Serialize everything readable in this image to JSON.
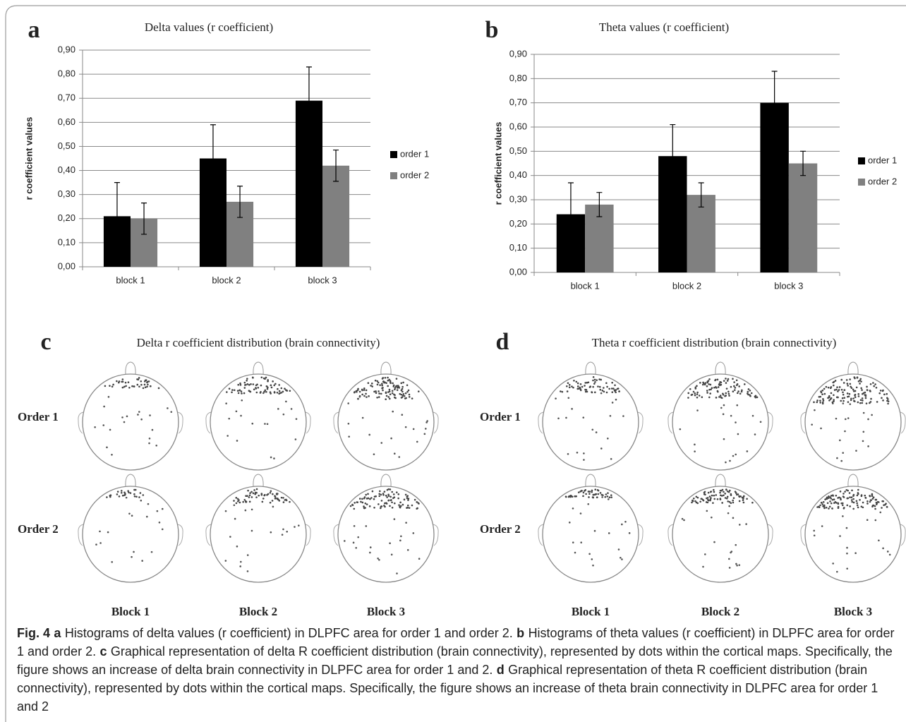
{
  "chart_data": [
    {
      "type": "bar",
      "panel": "a",
      "title": "Delta values (r coefficient)",
      "y_label": "r coefficient values",
      "categories": [
        "block 1",
        "block 2",
        "block 3"
      ],
      "series": [
        {
          "name": "order 1",
          "color": "#000000",
          "values": [
            0.21,
            0.45,
            0.69
          ],
          "errors": [
            0.14,
            0.14,
            0.14
          ]
        },
        {
          "name": "order 2",
          "color": "#808080",
          "values": [
            0.2,
            0.27,
            0.42
          ],
          "errors": [
            0.065,
            0.065,
            0.065
          ]
        }
      ],
      "ylim": [
        0,
        0.9
      ],
      "yticks": [
        {
          "value": 0,
          "label": "0,00"
        },
        {
          "value": 0.1,
          "label": "0,10"
        },
        {
          "value": 0.2,
          "label": "0,20"
        },
        {
          "value": 0.3,
          "label": "0,30"
        },
        {
          "value": 0.4,
          "label": "0,40"
        },
        {
          "value": 0.5,
          "label": "0,50"
        },
        {
          "value": 0.6,
          "label": "0,60"
        },
        {
          "value": 0.7,
          "label": "0,70"
        },
        {
          "value": 0.8,
          "label": "0,80"
        },
        {
          "value": 0.9,
          "label": "0,90"
        }
      ],
      "grid": true,
      "legend": "right"
    },
    {
      "type": "bar",
      "panel": "b",
      "title": "Theta values (r coefficient)",
      "y_label": "r coefficient values",
      "categories": [
        "block 1",
        "block 2",
        "block 3"
      ],
      "series": [
        {
          "name": "order 1",
          "color": "#000000",
          "values": [
            0.24,
            0.48,
            0.7
          ],
          "errors": [
            0.13,
            0.13,
            0.13
          ]
        },
        {
          "name": "order 2",
          "color": "#808080",
          "values": [
            0.28,
            0.32,
            0.45
          ],
          "errors": [
            0.05,
            0.05,
            0.05
          ]
        }
      ],
      "ylim": [
        0,
        0.9
      ],
      "yticks": [
        {
          "value": 0,
          "label": "0,00"
        },
        {
          "value": 0.1,
          "label": "0,10"
        },
        {
          "value": 0.2,
          "label": "0,20"
        },
        {
          "value": 0.3,
          "label": "0,30"
        },
        {
          "value": 0.4,
          "label": "0,40"
        },
        {
          "value": 0.5,
          "label": "0,50"
        },
        {
          "value": 0.6,
          "label": "0,60"
        },
        {
          "value": 0.7,
          "label": "0,70"
        },
        {
          "value": 0.8,
          "label": "0,80"
        },
        {
          "value": 0.9,
          "label": "0,90"
        }
      ],
      "grid": true,
      "legend": "right"
    }
  ],
  "maps": [
    {
      "panel": "c",
      "title": "Delta r coefficient distribution (brain connectivity)",
      "rows": [
        "Order 1",
        "Order 2"
      ],
      "columns": [
        "Block 1",
        "Block 2",
        "Block 3"
      ]
    },
    {
      "panel": "d",
      "title": "Theta r coefficient distribution (brain connectivity)",
      "rows": [
        "Order 1",
        "Order 2"
      ],
      "columns": [
        "Block 1",
        "Block 2",
        "Block 3"
      ]
    }
  ],
  "caption": {
    "figure": "Fig. 4",
    "parts": [
      {
        "letter": "a",
        "text": "Histograms of delta values (r coefficient) in DLPFC area for order 1 and order 2."
      },
      {
        "letter": "b",
        "text": "Histograms of theta values (r coefficient) in DLPFC area for order 1 and order 2."
      },
      {
        "letter": "c",
        "text": "Graphical representation of delta R coefficient distribution (brain connectivity), represented by dots within the cortical maps. Specifically, the figure shows an increase of delta brain connectivity in DLPFC area for order 1 and 2."
      },
      {
        "letter": "d",
        "text": "Graphical representation of theta R coefficient distribution (brain connectivity), represented by dots within the cortical maps. Specifically, the figure shows an increase of theta brain connectivity in DLPFC area for order 1 and 2"
      }
    ]
  }
}
